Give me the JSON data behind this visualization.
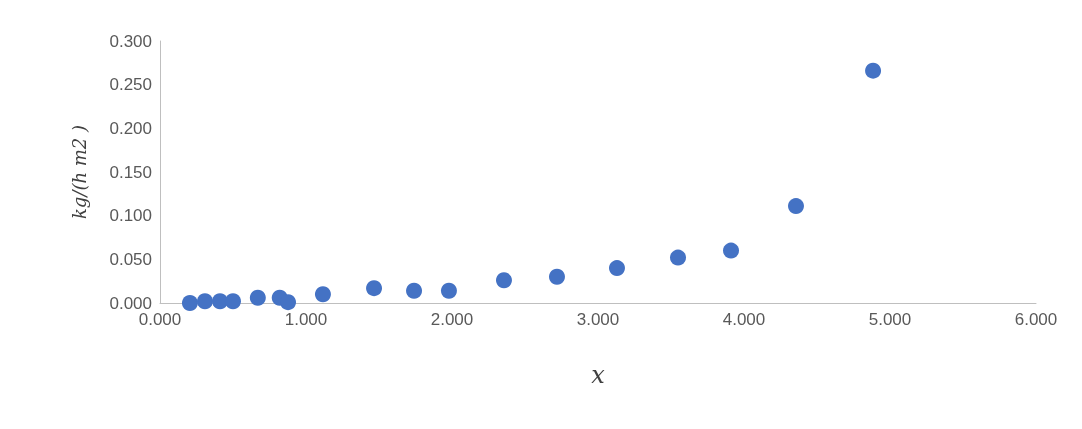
{
  "chart_data": {
    "type": "scatter",
    "xlabel": "x",
    "ylabel": "kg/(h m2 )",
    "x": [
      0.205,
      0.308,
      0.411,
      0.5,
      0.67,
      0.82,
      0.877,
      1.116,
      1.466,
      1.74,
      1.979,
      2.356,
      2.719,
      3.13,
      3.548,
      3.911,
      4.356,
      4.884
    ],
    "series": [
      {
        "color": "#4472c4",
        "values": [
          0.0,
          0.002,
          0.002,
          0.002,
          0.006,
          0.006,
          0.001,
          0.01,
          0.017,
          0.014,
          0.014,
          0.026,
          0.03,
          0.04,
          0.052,
          0.06,
          0.111,
          0.266
        ]
      }
    ],
    "xlim": [
      0,
      6
    ],
    "ylim": [
      0,
      0.3
    ],
    "xticks": [
      {
        "value": 0,
        "label": "0.000"
      },
      {
        "value": 1,
        "label": "1.000"
      },
      {
        "value": 2,
        "label": "2.000"
      },
      {
        "value": 3,
        "label": "3.000"
      },
      {
        "value": 4,
        "label": "4.000"
      },
      {
        "value": 5,
        "label": "5.000"
      },
      {
        "value": 6,
        "label": "6.000"
      }
    ],
    "yticks": [
      {
        "value": 0,
        "label": "0.000"
      },
      {
        "value": 0.05,
        "label": "0.050"
      },
      {
        "value": 0.1,
        "label": "0.100"
      },
      {
        "value": 0.15,
        "label": "0.150"
      },
      {
        "value": 0.2,
        "label": "0.200"
      },
      {
        "value": 0.25,
        "label": "0.250"
      },
      {
        "value": 0.3,
        "label": "0.300"
      }
    ],
    "grid": false,
    "marker": "circle"
  }
}
